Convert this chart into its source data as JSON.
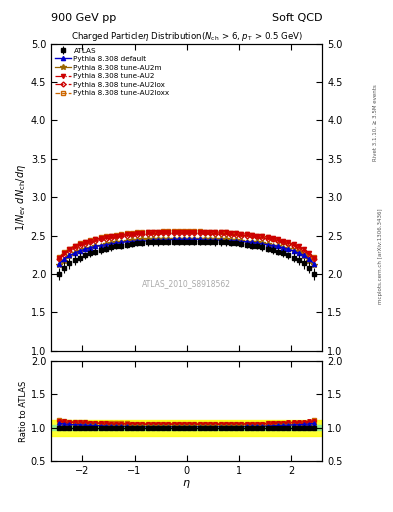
{
  "title_top_left": "900 GeV pp",
  "title_top_right": "Soft QCD",
  "plot_title": "Charged Particle$\\eta$ Distribution($N_{\\mathregular{ch}}$ > 6, $p_{\\mathregular{T}}$ > 0.5 GeV)",
  "ylabel_main": "$1/N_{\\mathregular{ev}}\\; dN_{\\mathregular{ch}}/d\\eta$",
  "ylabel_ratio": "Ratio to ATLAS",
  "xlabel": "$\\eta$",
  "watermark": "ATLAS_2010_S8918562",
  "right_label_top": "Rivet 3.1.10, ≥ 3.5M events",
  "right_label_mid": "mcplots.cern.ch [arXiv:1306.3436]",
  "xlim": [
    -2.6,
    2.6
  ],
  "ylim_main": [
    1.0,
    5.0
  ],
  "ylim_ratio": [
    0.5,
    2.0
  ],
  "yticks_main": [
    1.0,
    1.5,
    2.0,
    2.5,
    3.0,
    3.5,
    4.0,
    4.5,
    5.0
  ],
  "yticks_ratio": [
    0.5,
    1.0,
    1.5,
    2.0
  ],
  "background_color": "#ffffff",
  "eta_values": [
    -2.45,
    -2.35,
    -2.25,
    -2.15,
    -2.05,
    -1.95,
    -1.85,
    -1.75,
    -1.65,
    -1.55,
    -1.45,
    -1.35,
    -1.25,
    -1.15,
    -1.05,
    -0.95,
    -0.85,
    -0.75,
    -0.65,
    -0.55,
    -0.45,
    -0.35,
    -0.25,
    -0.15,
    -0.05,
    0.05,
    0.15,
    0.25,
    0.35,
    0.45,
    0.55,
    0.65,
    0.75,
    0.85,
    0.95,
    1.05,
    1.15,
    1.25,
    1.35,
    1.45,
    1.55,
    1.65,
    1.75,
    1.85,
    1.95,
    2.05,
    2.15,
    2.25,
    2.35,
    2.45
  ],
  "atlas_values": [
    2.0,
    2.08,
    2.14,
    2.18,
    2.21,
    2.24,
    2.27,
    2.29,
    2.31,
    2.33,
    2.35,
    2.36,
    2.37,
    2.38,
    2.39,
    2.4,
    2.4,
    2.41,
    2.41,
    2.41,
    2.42,
    2.42,
    2.42,
    2.42,
    2.42,
    2.42,
    2.42,
    2.42,
    2.42,
    2.42,
    2.41,
    2.41,
    2.41,
    2.4,
    2.4,
    2.39,
    2.38,
    2.37,
    2.36,
    2.35,
    2.33,
    2.31,
    2.29,
    2.27,
    2.24,
    2.21,
    2.18,
    2.14,
    2.08,
    2.0
  ],
  "atlas_errors": [
    0.08,
    0.07,
    0.07,
    0.06,
    0.06,
    0.05,
    0.05,
    0.05,
    0.05,
    0.05,
    0.05,
    0.04,
    0.04,
    0.04,
    0.04,
    0.04,
    0.04,
    0.04,
    0.04,
    0.04,
    0.04,
    0.04,
    0.04,
    0.04,
    0.04,
    0.04,
    0.04,
    0.04,
    0.04,
    0.04,
    0.04,
    0.04,
    0.04,
    0.04,
    0.04,
    0.04,
    0.04,
    0.04,
    0.04,
    0.05,
    0.05,
    0.05,
    0.05,
    0.05,
    0.05,
    0.06,
    0.06,
    0.07,
    0.07,
    0.08
  ],
  "default_values": [
    2.13,
    2.19,
    2.24,
    2.27,
    2.3,
    2.32,
    2.34,
    2.36,
    2.37,
    2.38,
    2.39,
    2.4,
    2.41,
    2.42,
    2.42,
    2.43,
    2.43,
    2.43,
    2.44,
    2.44,
    2.44,
    2.44,
    2.45,
    2.45,
    2.45,
    2.45,
    2.45,
    2.45,
    2.44,
    2.44,
    2.44,
    2.44,
    2.43,
    2.43,
    2.43,
    2.42,
    2.42,
    2.41,
    2.4,
    2.39,
    2.38,
    2.37,
    2.36,
    2.34,
    2.32,
    2.3,
    2.27,
    2.24,
    2.19,
    2.13
  ],
  "au2_values": [
    2.21,
    2.27,
    2.32,
    2.36,
    2.39,
    2.41,
    2.43,
    2.45,
    2.47,
    2.48,
    2.49,
    2.5,
    2.51,
    2.52,
    2.52,
    2.53,
    2.53,
    2.54,
    2.54,
    2.55,
    2.55,
    2.55,
    2.55,
    2.55,
    2.55,
    2.55,
    2.55,
    2.55,
    2.55,
    2.55,
    2.55,
    2.54,
    2.54,
    2.53,
    2.53,
    2.52,
    2.52,
    2.51,
    2.5,
    2.49,
    2.48,
    2.47,
    2.45,
    2.43,
    2.41,
    2.39,
    2.36,
    2.32,
    2.27,
    2.21
  ],
  "au2lox_values": [
    2.19,
    2.25,
    2.3,
    2.34,
    2.37,
    2.39,
    2.41,
    2.43,
    2.45,
    2.46,
    2.47,
    2.48,
    2.49,
    2.5,
    2.51,
    2.51,
    2.52,
    2.52,
    2.52,
    2.53,
    2.53,
    2.53,
    2.53,
    2.53,
    2.53,
    2.53,
    2.53,
    2.53,
    2.53,
    2.53,
    2.52,
    2.52,
    2.52,
    2.51,
    2.51,
    2.5,
    2.5,
    2.49,
    2.48,
    2.47,
    2.46,
    2.45,
    2.43,
    2.41,
    2.39,
    2.37,
    2.34,
    2.3,
    2.25,
    2.19
  ],
  "au2loxx_values": [
    2.22,
    2.28,
    2.33,
    2.37,
    2.4,
    2.42,
    2.44,
    2.46,
    2.48,
    2.49,
    2.5,
    2.51,
    2.52,
    2.53,
    2.53,
    2.54,
    2.54,
    2.55,
    2.55,
    2.55,
    2.56,
    2.56,
    2.56,
    2.56,
    2.56,
    2.56,
    2.56,
    2.56,
    2.55,
    2.55,
    2.55,
    2.54,
    2.54,
    2.53,
    2.53,
    2.52,
    2.52,
    2.51,
    2.5,
    2.49,
    2.48,
    2.46,
    2.44,
    2.42,
    2.4,
    2.37,
    2.33,
    2.28,
    2.22,
    2.22
  ],
  "au2m_values": [
    2.11,
    2.17,
    2.23,
    2.27,
    2.3,
    2.32,
    2.34,
    2.36,
    2.37,
    2.39,
    2.4,
    2.41,
    2.42,
    2.43,
    2.44,
    2.44,
    2.45,
    2.45,
    2.45,
    2.46,
    2.46,
    2.46,
    2.46,
    2.46,
    2.46,
    2.46,
    2.46,
    2.46,
    2.46,
    2.46,
    2.45,
    2.45,
    2.45,
    2.44,
    2.44,
    2.43,
    2.42,
    2.42,
    2.41,
    2.4,
    2.39,
    2.37,
    2.36,
    2.34,
    2.32,
    2.3,
    2.27,
    2.23,
    2.17,
    2.11
  ],
  "colors": {
    "atlas": "#000000",
    "default": "#0000cc",
    "au2": "#cc0000",
    "au2lox": "#cc0000",
    "au2loxx": "#cc6600",
    "au2m": "#996600"
  },
  "band_green": [
    0.96,
    1.04
  ],
  "band_yellow": [
    0.88,
    1.12
  ]
}
